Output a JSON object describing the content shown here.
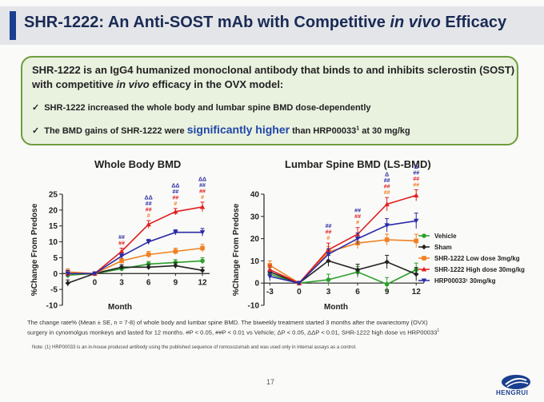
{
  "slide": {
    "title_prefix": "SHR-1222: An Anti-SOST mAb with Competitive ",
    "title_italic": "in vivo",
    "title_suffix": " Efficacy",
    "summary_line1": "SHR-1222 is an IgG4 humanized monoclonal antibody that binds to and inhibits sclerostin (SOST)",
    "summary_line2_prefix": "with competitive ",
    "summary_line2_italic": "in vivo",
    "summary_line2_suffix": " efficacy in the OVX model:",
    "bullet1": "SHR-1222 increased the whole body and lumbar spine BMD dose-dependently",
    "bullet2_prefix": "The BMD gains of SHR-1222 were ",
    "bullet2_highlight": "significantly higher",
    "bullet2_suffix": " than HRP00033",
    "bullet2_sup": "1",
    "bullet2_end": " at 30 mg/kg",
    "check_mark": "✓",
    "caption_line1": "The change rate% (Mean ± SE, n = 7-8) of whole body and lumbar spine BMD. The biweekly treatment started 3 months after the ovariectomy (OVX)",
    "caption_line2": "surgery in cynomolgus monkeys and lasted for 12 months. #P < 0.05, ##P < 0.01 vs Vehicle; ΔP < 0.05, ΔΔP < 0.01, SHR-1222 high dose vs HRP00033",
    "caption_sup": "1",
    "note": "Note: (1) HRP00033 is an in-house produced antibody using the published sequence of romosozumab and was used only in internal assays as a control.",
    "page_number": "17",
    "logo_text": "HENGRUI"
  },
  "legend": {
    "placement": "right",
    "entries": [
      {
        "label": "Vehicle",
        "color": "#2ca02c",
        "marker": "circle"
      },
      {
        "label": "Sham",
        "color": "#222222",
        "marker": "diamond"
      },
      {
        "label": "SHR-1222 Low dose 3mg/kg",
        "color": "#f08020",
        "marker": "square"
      },
      {
        "label": "SHR-1222 High dose 30mg/kg",
        "color": "#e02020",
        "marker": "triangle-up"
      },
      {
        "label": "HRP00033¹ 30mg/kg",
        "color": "#2a2aa8",
        "marker": "triangle-down"
      }
    ]
  },
  "chart_data": [
    {
      "type": "line",
      "title": "Whole Body BMD",
      "xlabel": "Month",
      "ylabel": "%Change From Predose",
      "x": [
        -3,
        0,
        3,
        6,
        9,
        12
      ],
      "x_tick_labels": [
        "",
        "0",
        "3",
        "6",
        "9",
        "12"
      ],
      "ylim": [
        -10,
        25
      ],
      "y_ticks": [
        -10,
        -5,
        0,
        5,
        10,
        15,
        20,
        25
      ],
      "y_tick_labels": [
        "-10",
        "-5",
        "0",
        "5",
        "10",
        "15",
        "20",
        "25"
      ],
      "series": [
        {
          "name": "Vehicle",
          "color": "#2ca02c",
          "marker": "circle",
          "values": [
            -0.5,
            0,
            1.5,
            3,
            3.5,
            4
          ]
        },
        {
          "name": "Sham",
          "color": "#222222",
          "marker": "diamond",
          "values": [
            -3,
            0,
            2,
            2,
            2.5,
            1
          ]
        },
        {
          "name": "SHR-1222 Low dose 3mg/kg",
          "color": "#f08020",
          "marker": "square",
          "values": [
            0.5,
            0,
            4,
            6,
            7,
            8
          ]
        },
        {
          "name": "SHR-1222 High dose 30mg/kg",
          "color": "#e02020",
          "marker": "triangle-up",
          "values": [
            0,
            0,
            7,
            15.5,
            19.5,
            21
          ]
        },
        {
          "name": "HRP00033¹ 30mg/kg",
          "color": "#2a2aa8",
          "marker": "triangle-down",
          "values": [
            0,
            0,
            5.5,
            10,
            13,
            13
          ]
        }
      ],
      "error": [
        [
          1,
          0,
          0.8,
          0.8,
          0.9,
          1
        ],
        [
          1,
          0,
          0.8,
          0.8,
          0.9,
          1
        ],
        [
          1,
          0,
          0.8,
          1,
          1,
          1.2
        ],
        [
          1,
          0,
          1,
          1.2,
          1,
          1.5
        ],
        [
          1,
          0,
          0.8,
          0.8,
          0.8,
          1.2
        ]
      ],
      "annotations": [
        {
          "x": 3,
          "rows": [
            {
              "text": "##",
              "color": "#2a2aa8"
            },
            {
              "text": "##",
              "color": "#e02020"
            }
          ]
        },
        {
          "x": 6,
          "rows": [
            {
              "text": "ΔΔ",
              "color": "#2a2aa8"
            },
            {
              "text": "##",
              "color": "#2a2aa8"
            },
            {
              "text": "##",
              "color": "#e02020"
            },
            {
              "text": "#",
              "color": "#f08020"
            }
          ]
        },
        {
          "x": 9,
          "rows": [
            {
              "text": "ΔΔ",
              "color": "#2a2aa8"
            },
            {
              "text": "##",
              "color": "#2a2aa8"
            },
            {
              "text": "##",
              "color": "#e02020"
            },
            {
              "text": "#",
              "color": "#f08020"
            }
          ]
        },
        {
          "x": 12,
          "rows": [
            {
              "text": "ΔΔ",
              "color": "#2a2aa8"
            },
            {
              "text": "##",
              "color": "#2a2aa8"
            },
            {
              "text": "##",
              "color": "#e02020"
            },
            {
              "text": "#",
              "color": "#f08020"
            }
          ]
        }
      ]
    },
    {
      "type": "line",
      "title": "Lumbar Spine BMD (LS-BMD)",
      "xlabel": "Month",
      "ylabel": "%Change From Predose",
      "x": [
        -3,
        0,
        3,
        6,
        9,
        12
      ],
      "x_tick_labels": [
        "-3",
        "0",
        "3",
        "6",
        "9",
        "12"
      ],
      "ylim": [
        -10,
        40
      ],
      "y_ticks": [
        -10,
        0,
        10,
        20,
        30,
        40
      ],
      "y_tick_labels": [
        "-10",
        "0",
        "10",
        "20",
        "30",
        "40"
      ],
      "series": [
        {
          "name": "Vehicle",
          "color": "#2ca02c",
          "marker": "circle",
          "values": [
            4,
            0,
            1.5,
            5,
            -0.5,
            6
          ]
        },
        {
          "name": "Sham",
          "color": "#222222",
          "marker": "diamond",
          "values": [
            5,
            0,
            10,
            6,
            9.5,
            4
          ]
        },
        {
          "name": "SHR-1222 Low dose 3mg/kg",
          "color": "#f08020",
          "marker": "square",
          "values": [
            8,
            0,
            14,
            18,
            19.5,
            19
          ]
        },
        {
          "name": "SHR-1222 High dose 30mg/kg",
          "color": "#e02020",
          "marker": "triangle-up",
          "values": [
            6,
            0,
            15,
            22,
            35.5,
            39.5
          ]
        },
        {
          "name": "HRP00033¹ 30mg/kg",
          "color": "#2a2aa8",
          "marker": "triangle-down",
          "values": [
            3,
            0,
            13,
            20,
            26,
            28
          ]
        }
      ],
      "error": [
        [
          2,
          0,
          2.5,
          2.5,
          3,
          3
        ],
        [
          2,
          0,
          2.5,
          2.5,
          3,
          3
        ],
        [
          2,
          0,
          2.5,
          2.5,
          2.5,
          3
        ],
        [
          2,
          0,
          3,
          3,
          3,
          2.5
        ],
        [
          2,
          0,
          2.5,
          2.5,
          3,
          3.5
        ]
      ],
      "annotations": [
        {
          "x": 3,
          "rows": [
            {
              "text": "##",
              "color": "#2a2aa8"
            },
            {
              "text": "##",
              "color": "#e02020"
            },
            {
              "text": "#",
              "color": "#f08020"
            }
          ]
        },
        {
          "x": 6,
          "rows": [
            {
              "text": "##",
              "color": "#2a2aa8"
            },
            {
              "text": "##",
              "color": "#e02020"
            },
            {
              "text": "#",
              "color": "#f08020"
            }
          ]
        },
        {
          "x": 9,
          "rows": [
            {
              "text": "Δ",
              "color": "#2a2aa8"
            },
            {
              "text": "##",
              "color": "#2a2aa8"
            },
            {
              "text": "##",
              "color": "#e02020"
            },
            {
              "text": "##",
              "color": "#f08020"
            }
          ]
        },
        {
          "x": 12,
          "rows": [
            {
              "text": "Δ",
              "color": "#2a2aa8"
            },
            {
              "text": "##",
              "color": "#2a2aa8"
            },
            {
              "text": "##",
              "color": "#e02020"
            },
            {
              "text": "##",
              "color": "#f08020"
            }
          ]
        }
      ]
    }
  ]
}
